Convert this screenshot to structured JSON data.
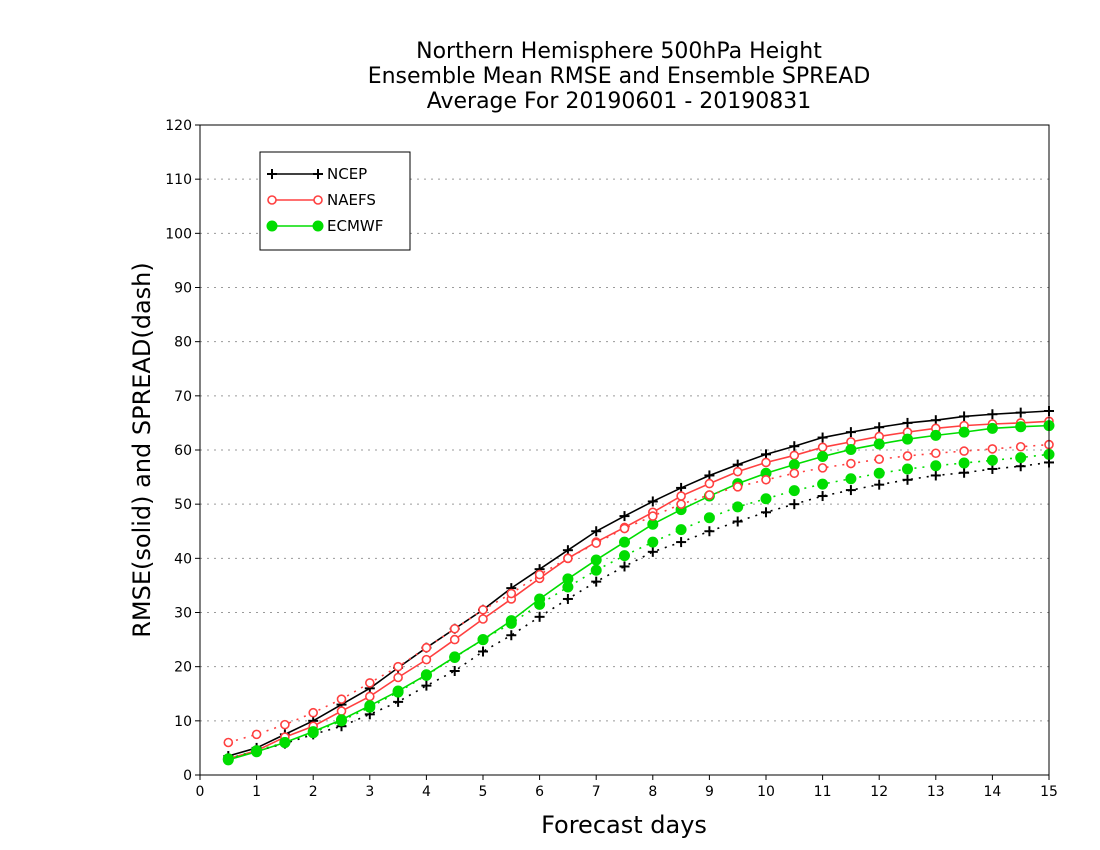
{
  "chart_data": {
    "type": "line",
    "title": [
      "Northern Hemisphere 500hPa Height",
      "Ensemble Mean RMSE and Ensemble SPREAD",
      "Average For 20190601 - 20190831"
    ],
    "xlabel": "Forecast days",
    "ylabel": "RMSE(solid) and SPREAD(dash)",
    "xlim": [
      0,
      15
    ],
    "ylim": [
      0,
      120
    ],
    "xticks": [
      0,
      1,
      2,
      3,
      4,
      5,
      6,
      7,
      8,
      9,
      10,
      11,
      12,
      13,
      14,
      15
    ],
    "yticks": [
      0,
      10,
      20,
      30,
      40,
      50,
      60,
      70,
      80,
      90,
      100,
      110,
      120
    ],
    "grid": "horizontal dotted",
    "legend_position": "top-left",
    "x": [
      0.5,
      1,
      1.5,
      2,
      2.5,
      3,
      3.5,
      4,
      4.5,
      5,
      5.5,
      6,
      6.5,
      7,
      7.5,
      8,
      8.5,
      9,
      9.5,
      10,
      10.5,
      11,
      11.5,
      12,
      12.5,
      13,
      13.5,
      14,
      14.5,
      15
    ],
    "series": [
      {
        "name": "NCEP",
        "metric": "RMSE",
        "color": "#000000",
        "marker": "plus",
        "values": [
          3.5,
          5,
          7.5,
          10,
          13,
          16,
          19.8,
          23.5,
          27,
          30.5,
          34.5,
          38,
          41.5,
          45,
          47.8,
          50.5,
          53,
          55.3,
          57.3,
          59.2,
          60.7,
          62.3,
          63.3,
          64.2,
          65,
          65.5,
          66.2,
          66.6,
          66.9,
          67.2
        ]
      },
      {
        "name": "NAEFS",
        "metric": "RMSE",
        "color": "#ff4040",
        "marker": "open-circle",
        "values": [
          3,
          4.5,
          7,
          9,
          11.8,
          14.5,
          18,
          21.3,
          25,
          28.8,
          32.5,
          36.3,
          40,
          43,
          45.7,
          48.5,
          51.5,
          53.8,
          56,
          57.7,
          59,
          60.5,
          61.5,
          62.5,
          63.3,
          64,
          64.5,
          64.8,
          65,
          65.3
        ]
      },
      {
        "name": "ECMWF",
        "metric": "RMSE",
        "color": "#00dd00",
        "marker": "filled-circle",
        "values": [
          2.8,
          4.3,
          6,
          8,
          10.2,
          12.8,
          15.5,
          18.5,
          21.8,
          25,
          28.5,
          32.5,
          36.2,
          39.7,
          43,
          46.3,
          49,
          51.5,
          53.8,
          55.7,
          57.3,
          58.8,
          60.1,
          61.1,
          62,
          62.7,
          63.3,
          64,
          64.3,
          64.5
        ]
      },
      {
        "name": "NCEP",
        "metric": "SPREAD",
        "color": "#000000",
        "marker": "plus",
        "values": [
          3,
          4.5,
          5.8,
          7.5,
          9,
          11.2,
          13.5,
          16.5,
          19.2,
          22.8,
          25.8,
          29.2,
          32.5,
          35.7,
          38.5,
          41.2,
          43,
          45,
          46.8,
          48.5,
          50,
          51.5,
          52.6,
          53.6,
          54.5,
          55.3,
          55.8,
          56.5,
          57,
          57.7
        ]
      },
      {
        "name": "NAEFS",
        "metric": "SPREAD",
        "color": "#ff4040",
        "marker": "open-circle",
        "values": [
          6,
          7.5,
          9.3,
          11.5,
          14,
          17,
          20,
          23.5,
          27,
          30.5,
          33.5,
          37,
          40,
          42.8,
          45.5,
          47.8,
          50,
          51.7,
          53.2,
          54.5,
          55.7,
          56.7,
          57.5,
          58.3,
          58.9,
          59.4,
          59.8,
          60.2,
          60.6,
          61
        ]
      },
      {
        "name": "ECMWF",
        "metric": "SPREAD",
        "color": "#00dd00",
        "marker": "filled-circle",
        "values": [
          3,
          4.5,
          6,
          7.8,
          10,
          12.5,
          15.3,
          18.4,
          21.7,
          25,
          28,
          31.5,
          34.7,
          37.8,
          40.5,
          43,
          45.3,
          47.5,
          49.5,
          51,
          52.5,
          53.7,
          54.7,
          55.7,
          56.5,
          57.1,
          57.6,
          58.1,
          58.6,
          59.2
        ]
      }
    ]
  }
}
